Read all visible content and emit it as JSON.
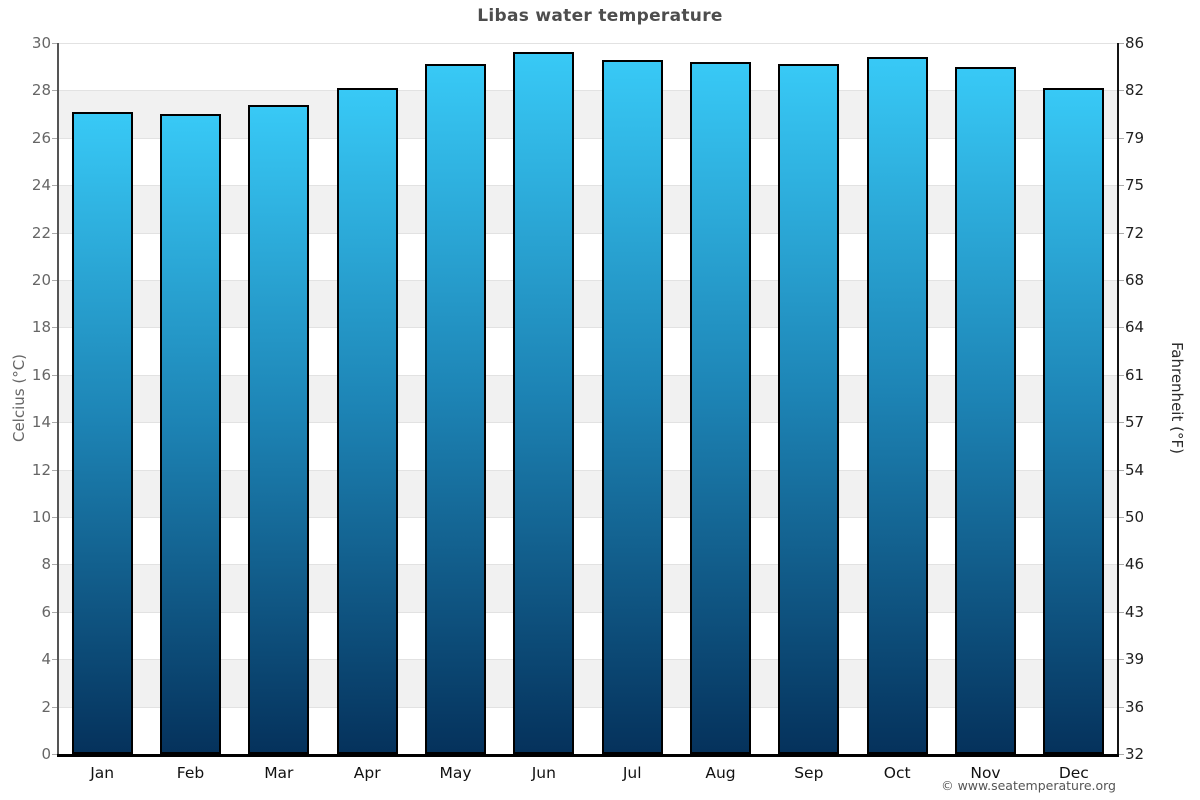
{
  "chart": {
    "title": "Libas water temperature",
    "left_axis_title": "Celcius (°C)",
    "right_axis_title": "Fahrenheit (°F)",
    "footer": "© www.seatemperature.org"
  },
  "chart_data": {
    "type": "bar",
    "title": "Libas water temperature",
    "categories": [
      "Jan",
      "Feb",
      "Mar",
      "Apr",
      "May",
      "Jun",
      "Jul",
      "Aug",
      "Sep",
      "Oct",
      "Nov",
      "Dec"
    ],
    "values": [
      27.1,
      27.0,
      27.4,
      28.1,
      29.1,
      29.6,
      29.3,
      29.2,
      29.1,
      29.4,
      29.0,
      28.1
    ],
    "unit": "°C",
    "xlabel": "",
    "ylabel_left": "Celcius (°C)",
    "ylabel_right": "Fahrenheit (°F)",
    "ylim": [
      0,
      30
    ],
    "left_ticks_celsius": [
      0,
      2,
      4,
      6,
      8,
      10,
      12,
      14,
      16,
      18,
      20,
      22,
      24,
      26,
      28,
      30
    ],
    "right_ticks_fahrenheit": [
      32,
      36,
      39,
      43,
      46,
      50,
      54,
      57,
      61,
      64,
      68,
      72,
      75,
      79,
      82,
      86
    ],
    "legend": "none",
    "grid": "horizontal alternating bands every 2°C",
    "colors": {
      "bar_gradient_top": "#38c9f6",
      "bar_gradient_mid": "#1d84b5",
      "bar_gradient_bottom": "#05325c",
      "bar_border": "#000000",
      "band_gray": "#f1f1f1",
      "band_white": "#ffffff",
      "gridline": "#e2e2e2",
      "title_text": "#4d4d4d",
      "left_axis_text": "#666666",
      "right_axis_text": "#1f1f1f",
      "month_text": "#111111",
      "footer_text": "#555555"
    }
  }
}
